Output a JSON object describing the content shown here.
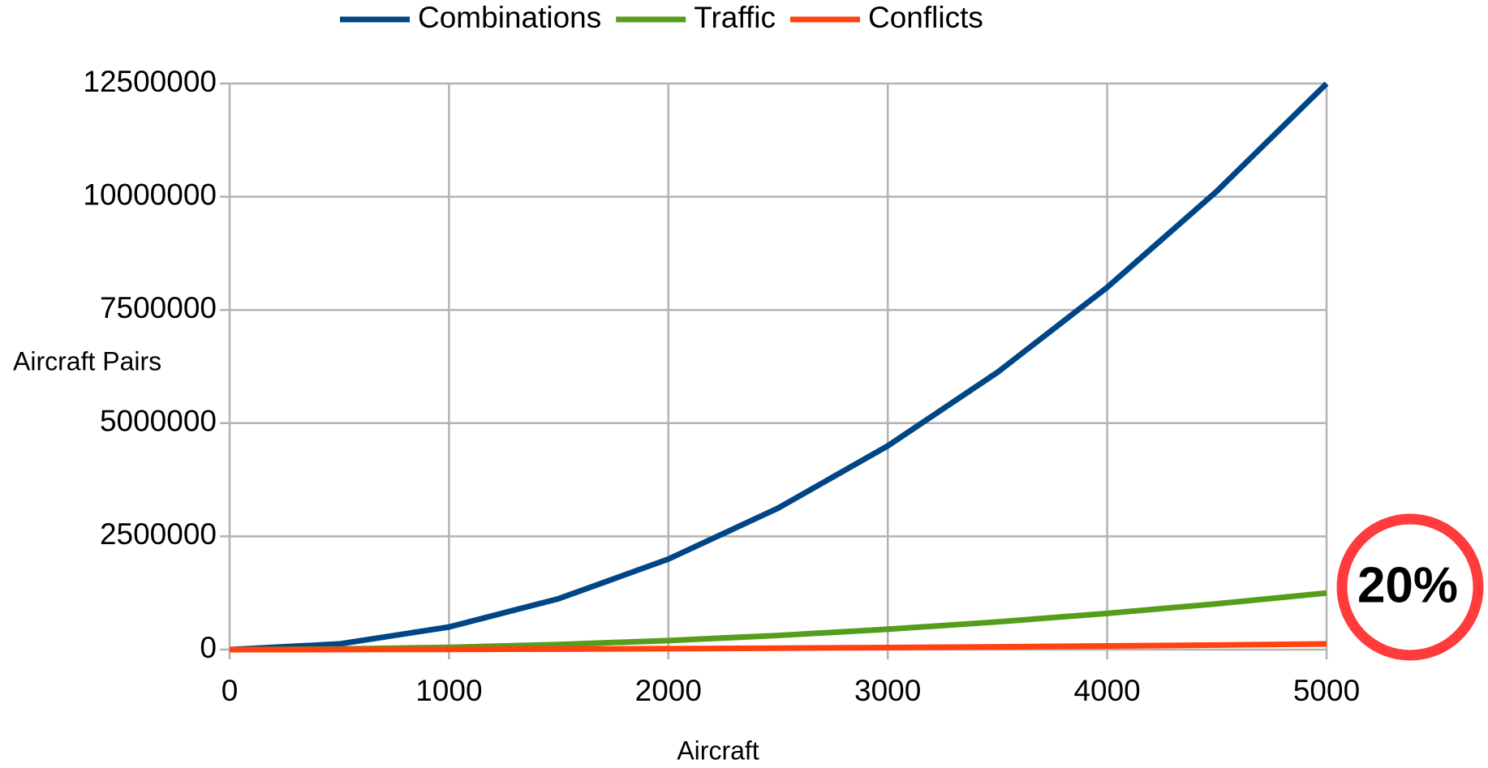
{
  "chart_data": {
    "type": "line",
    "x_label": "Aircraft",
    "y_label": "Aircraft Pairs",
    "annotation": "20%",
    "x": [
      0,
      500,
      1000,
      1500,
      2000,
      2500,
      3000,
      3500,
      4000,
      4500,
      5000
    ],
    "series": [
      {
        "name": "Combinations",
        "color": "#004586",
        "values": [
          0,
          124750,
          499500,
          1124250,
          1999000,
          3123750,
          4498500,
          6123250,
          7998000,
          10122750,
          12497500
        ]
      },
      {
        "name": "Traffic",
        "color": "#579d1c",
        "values": [
          0,
          12475,
          49950,
          112425,
          199900,
          312375,
          449850,
          612325,
          799800,
          1012275,
          1249750
        ]
      },
      {
        "name": "Conflicts",
        "color": "#ff420e",
        "values": [
          0,
          1248,
          4995,
          11243,
          19990,
          31238,
          44985,
          61233,
          79980,
          101228,
          124975
        ]
      }
    ],
    "xlim": [
      0,
      5000
    ],
    "xticks": [
      0,
      1000,
      2000,
      3000,
      4000,
      5000
    ],
    "ylim": [
      0,
      12500000
    ],
    "yticks": [
      0,
      2500000,
      5000000,
      7500000,
      10000000,
      12500000
    ],
    "grid": true,
    "legend": "top"
  }
}
